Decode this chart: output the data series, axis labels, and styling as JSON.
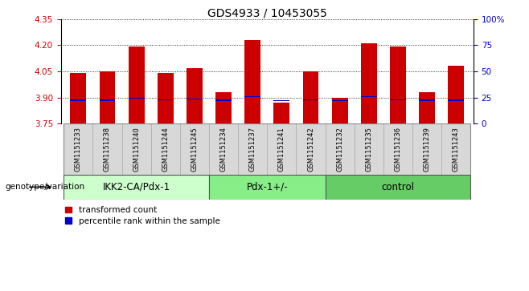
{
  "title": "GDS4933 / 10453055",
  "samples": [
    "GSM1151233",
    "GSM1151238",
    "GSM1151240",
    "GSM1151244",
    "GSM1151245",
    "GSM1151234",
    "GSM1151237",
    "GSM1151241",
    "GSM1151242",
    "GSM1151232",
    "GSM1151235",
    "GSM1151236",
    "GSM1151239",
    "GSM1151243"
  ],
  "red_values": [
    4.04,
    4.05,
    4.19,
    4.04,
    4.07,
    3.93,
    4.23,
    3.87,
    4.05,
    3.9,
    4.21,
    4.19,
    3.93,
    4.08
  ],
  "blue_values": [
    3.885,
    3.885,
    3.895,
    3.886,
    3.892,
    3.885,
    3.905,
    3.882,
    3.886,
    3.883,
    3.904,
    3.887,
    3.884,
    3.884
  ],
  "ylim": [
    3.75,
    4.35
  ],
  "yticks": [
    3.75,
    3.9,
    4.05,
    4.2,
    4.35
  ],
  "right_yticks": [
    0,
    25,
    50,
    75,
    100
  ],
  "right_ylim": [
    0,
    100
  ],
  "groups": [
    {
      "label": "IKK2-CA/Pdx-1",
      "start": 0,
      "end": 5,
      "color": "#ccffcc"
    },
    {
      "label": "Pdx-1+/-",
      "start": 5,
      "end": 9,
      "color": "#88ee88"
    },
    {
      "label": "control",
      "start": 9,
      "end": 14,
      "color": "#66cc66"
    }
  ],
  "bar_width": 0.55,
  "red_color": "#cc0000",
  "blue_color": "#0000cc",
  "grid_color": "#000000",
  "background_color": "#ffffff",
  "plot_bg_color": "#ffffff",
  "label_color_red": "#cc0000",
  "label_color_blue": "#0000cc",
  "legend_red": "transformed count",
  "legend_blue": "percentile rank within the sample",
  "genotype_label": "genotype/variation",
  "title_fontsize": 10,
  "tick_fontsize": 7.5,
  "group_label_fontsize": 8.5,
  "legend_fontsize": 7.5,
  "sample_fontsize": 6.0
}
